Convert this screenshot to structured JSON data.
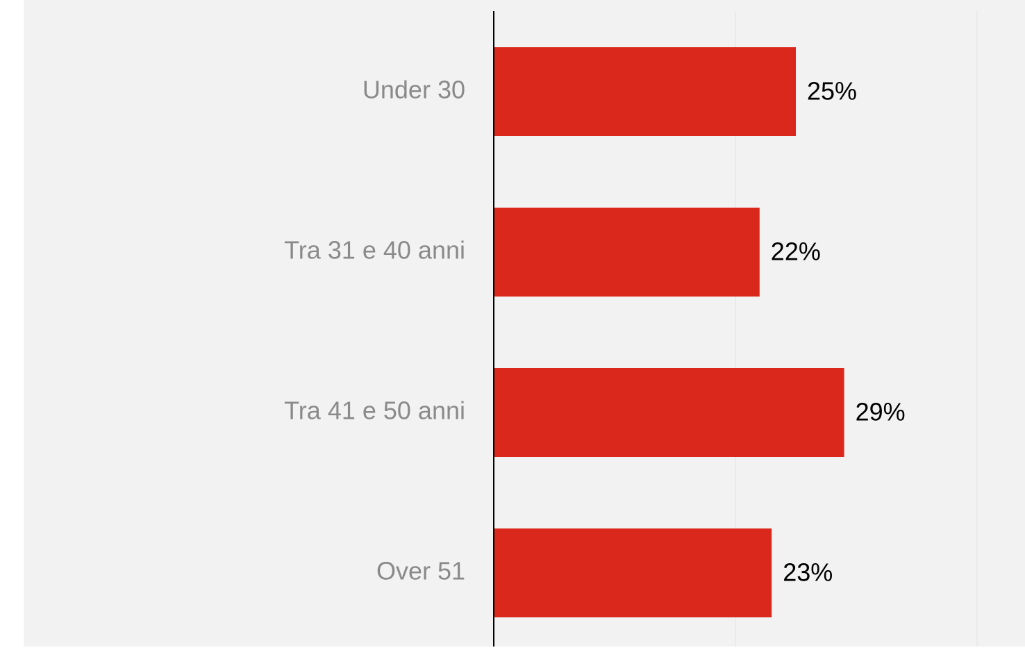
{
  "chart_data": {
    "type": "bar",
    "orientation": "horizontal",
    "categories": [
      "Under 30",
      "Tra 31 e 40 anni",
      "Tra 41 e 50 anni",
      "Over 51"
    ],
    "values": [
      25,
      22,
      29,
      23
    ],
    "value_labels": [
      "25%",
      "22%",
      "29%",
      "23%"
    ],
    "title": "",
    "xlabel": "",
    "ylabel": "",
    "xlim": [
      0,
      40
    ],
    "grid": true,
    "legend": "none",
    "colors": {
      "bar": "#da291c",
      "background": "#f2f2f2",
      "category_label": "#8a8a8a",
      "value_label": "#000000",
      "axis": "#000000",
      "grid": "#e2e2e2"
    }
  }
}
